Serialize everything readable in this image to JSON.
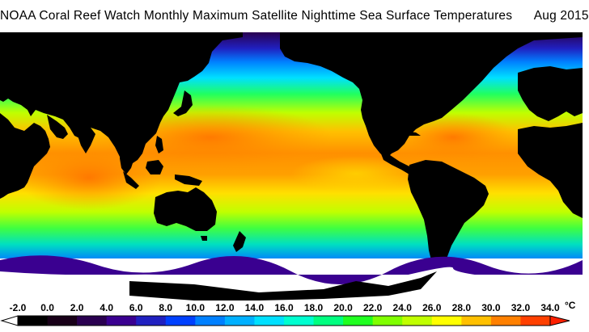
{
  "header": {
    "title": "NOAA Coral Reef Watch Monthly Maximum Satellite Nighttime Sea Surface Temperatures",
    "date": "Aug 2015"
  },
  "legend": {
    "ticks": [
      "-2.0",
      "0.0",
      "2.0",
      "4.0",
      "6.0",
      "8.0",
      "10.0",
      "12.0",
      "14.0",
      "16.0",
      "18.0",
      "20.0",
      "22.0",
      "24.0",
      "26.0",
      "28.0",
      "30.0",
      "32.0",
      "34.0"
    ],
    "unit": "°C",
    "range": [
      -2,
      34
    ],
    "colors": [
      "#000000",
      "#180018",
      "#2a0050",
      "#3a0090",
      "#2020c0",
      "#0040ff",
      "#0080ff",
      "#00b0ff",
      "#00e0ff",
      "#00ffd0",
      "#00ff80",
      "#20ff20",
      "#80ff00",
      "#c0ff00",
      "#ffff00",
      "#ffc000",
      "#ff8000",
      "#ff4000",
      "#ff0000"
    ]
  },
  "map": {
    "land_color": "#000000",
    "ice_color": "#ffffff"
  }
}
